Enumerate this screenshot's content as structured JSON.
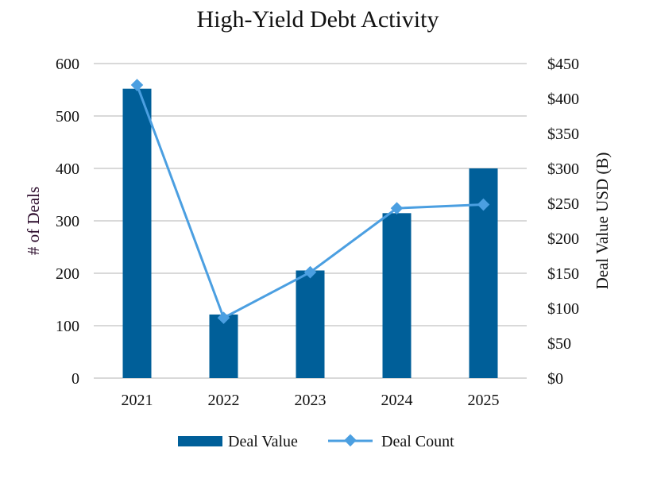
{
  "chart_data": {
    "type": "bar+line",
    "title": "High-Yield Debt Activity",
    "categories": [
      "2021",
      "2022",
      "2023",
      "2024",
      "2025"
    ],
    "series": [
      {
        "name": "Deal Value",
        "type": "bar",
        "axis": "right",
        "values": [
          414,
          91,
          154,
          236,
          300
        ],
        "color": "#005f99"
      },
      {
        "name": "Deal Count",
        "type": "line",
        "axis": "left",
        "marker": "diamond",
        "values": [
          559,
          115,
          202,
          324,
          331
        ],
        "color": "#4b9fe1"
      }
    ],
    "ylabel": "# of Deals",
    "ylabel_right": "Deal Value USD (B)",
    "ylim": [
      0,
      600
    ],
    "ylim_right": [
      0,
      450
    ],
    "yticks": [
      "0",
      "100",
      "200",
      "300",
      "400",
      "500",
      "600"
    ],
    "yticks_right": [
      "$0",
      "$50",
      "$100",
      "$150",
      "$200",
      "$250",
      "$300",
      "$350",
      "$400",
      "$450"
    ],
    "grid": true,
    "legend_position": "bottom"
  }
}
